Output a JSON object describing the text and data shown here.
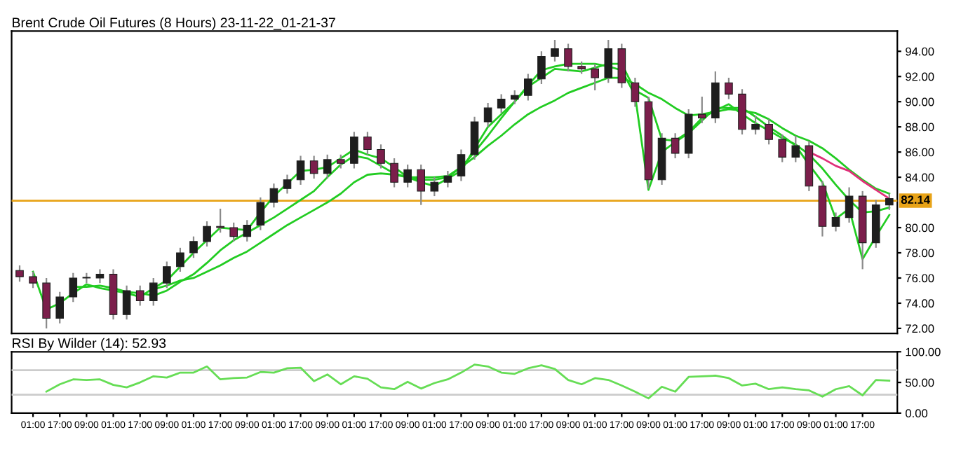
{
  "chart_data": [
    {
      "type": "candlestick",
      "title": "Brent Crude Oil Futures (8 Hours) 23-11-22_01-21-37",
      "categories": [
        null,
        null,
        null,
        null,
        null,
        null,
        null,
        null,
        null,
        null,
        null,
        null,
        null,
        null,
        null,
        null,
        null,
        null,
        null,
        null,
        null,
        null,
        null,
        null,
        null,
        null,
        null,
        null,
        null,
        null,
        null,
        null,
        null,
        null,
        null,
        null,
        null,
        null,
        null,
        null,
        null,
        null,
        null,
        null,
        null,
        null,
        null,
        null,
        null,
        null,
        null,
        null,
        null,
        null,
        null,
        null,
        null,
        null,
        null,
        null,
        null,
        null,
        null,
        null,
        null,
        null
      ],
      "ohlc": [
        [
          76.6,
          77.0,
          75.7,
          76.1
        ],
        [
          76.1,
          76.5,
          75.2,
          75.6
        ],
        [
          75.6,
          76.0,
          72.0,
          72.8
        ],
        [
          72.8,
          74.9,
          72.4,
          74.5
        ],
        [
          74.5,
          76.4,
          74.1,
          76.0
        ],
        [
          76.0,
          76.4,
          75.6,
          76.0
        ],
        [
          76.0,
          76.7,
          75.6,
          76.3
        ],
        [
          76.3,
          76.7,
          72.7,
          73.1
        ],
        [
          73.1,
          75.4,
          72.7,
          75.0
        ],
        [
          75.0,
          75.4,
          73.8,
          74.2
        ],
        [
          74.2,
          76.0,
          73.8,
          75.6
        ],
        [
          75.6,
          77.3,
          75.2,
          76.9
        ],
        [
          76.9,
          78.4,
          76.5,
          78.0
        ],
        [
          78.0,
          79.3,
          77.6,
          78.9
        ],
        [
          78.9,
          80.5,
          78.5,
          80.1
        ],
        [
          80.1,
          81.5,
          79.6,
          80.0
        ],
        [
          80.0,
          80.4,
          78.9,
          79.3
        ],
        [
          79.3,
          80.6,
          78.9,
          80.2
        ],
        [
          80.2,
          82.4,
          79.8,
          82.0
        ],
        [
          82.0,
          83.5,
          81.6,
          83.1
        ],
        [
          83.1,
          84.2,
          82.7,
          83.8
        ],
        [
          83.8,
          85.7,
          83.4,
          85.3
        ],
        [
          85.3,
          85.7,
          83.9,
          84.3
        ],
        [
          84.3,
          85.8,
          83.9,
          85.4
        ],
        [
          85.4,
          85.8,
          84.7,
          85.1
        ],
        [
          85.1,
          87.6,
          84.7,
          87.2
        ],
        [
          87.2,
          87.6,
          85.8,
          86.2
        ],
        [
          86.2,
          86.6,
          84.7,
          85.1
        ],
        [
          85.1,
          85.5,
          83.2,
          83.6
        ],
        [
          83.6,
          85.0,
          83.2,
          84.6
        ],
        [
          84.6,
          85.0,
          81.8,
          82.9
        ],
        [
          82.9,
          84.0,
          82.5,
          83.6
        ],
        [
          83.6,
          84.5,
          83.2,
          84.1
        ],
        [
          84.1,
          86.2,
          83.7,
          85.8
        ],
        [
          85.8,
          88.8,
          85.4,
          88.4
        ],
        [
          88.4,
          89.9,
          88.0,
          89.5
        ],
        [
          89.5,
          90.6,
          89.1,
          90.2
        ],
        [
          90.2,
          90.9,
          89.8,
          90.5
        ],
        [
          90.5,
          92.2,
          90.1,
          91.8
        ],
        [
          91.8,
          94.0,
          91.4,
          93.6
        ],
        [
          93.6,
          94.9,
          93.2,
          94.2
        ],
        [
          94.2,
          94.6,
          92.4,
          92.8
        ],
        [
          92.8,
          93.2,
          92.2,
          92.6
        ],
        [
          92.6,
          93.0,
          90.9,
          91.9
        ],
        [
          91.9,
          94.9,
          91.5,
          94.2
        ],
        [
          94.2,
          94.6,
          91.1,
          91.5
        ],
        [
          91.5,
          91.9,
          89.6,
          90.0
        ],
        [
          90.0,
          90.4,
          83.1,
          83.8
        ],
        [
          83.8,
          87.5,
          83.4,
          87.1
        ],
        [
          87.1,
          87.5,
          85.5,
          85.9
        ],
        [
          85.9,
          89.4,
          85.5,
          89.0
        ],
        [
          89.0,
          90.4,
          88.3,
          88.7
        ],
        [
          88.7,
          92.4,
          88.3,
          91.5
        ],
        [
          91.5,
          91.9,
          90.2,
          90.6
        ],
        [
          90.6,
          91.0,
          87.4,
          87.8
        ],
        [
          87.8,
          88.9,
          87.4,
          88.2
        ],
        [
          88.2,
          88.6,
          86.6,
          87.0
        ],
        [
          87.0,
          87.4,
          85.2,
          85.6
        ],
        [
          85.6,
          87.3,
          85.2,
          86.5
        ],
        [
          86.5,
          86.9,
          82.9,
          83.3
        ],
        [
          83.3,
          83.7,
          79.3,
          80.1
        ],
        [
          80.1,
          81.2,
          79.7,
          80.8
        ],
        [
          80.8,
          83.2,
          80.4,
          82.5
        ],
        [
          82.5,
          82.9,
          76.7,
          78.8
        ],
        [
          78.8,
          82.2,
          78.4,
          81.8
        ],
        [
          81.8,
          82.7,
          81.4,
          82.3
        ]
      ],
      "series": [
        {
          "type": "line",
          "color": "#22cc22",
          "values": [
            null,
            76.5,
            73.5,
            74.0,
            74.8,
            75.5,
            75.2,
            75.0,
            74.8,
            74.5,
            75.2,
            75.8,
            76.9,
            78.0,
            79.0,
            80.0,
            79.9,
            79.8,
            81.2,
            82.5,
            83.5,
            84.5,
            84.6,
            84.8,
            85.5,
            86.2,
            85.8,
            85.5,
            84.8,
            84.0,
            83.6,
            83.3,
            83.9,
            84.5,
            86.3,
            88.0,
            89.0,
            90.0,
            91.3,
            92.5,
            92.8,
            93.0,
            93.0,
            93.0,
            92.8,
            92.5,
            90.5,
            83.0,
            86.0,
            86.8,
            87.5,
            88.5,
            89.5,
            89.5,
            89.5,
            88.8,
            88.0,
            87.3,
            86.5,
            85.0,
            83.6,
            80.7,
            81.5,
            77.5,
            79.3,
            81.0
          ]
        },
        {
          "type": "line",
          "color": "#22cc22",
          "values": [
            null,
            null,
            null,
            null,
            75.3,
            75.3,
            75.4,
            75.2,
            74.9,
            74.8,
            74.6,
            75.0,
            75.7,
            76.3,
            77.2,
            78.2,
            79.0,
            79.6,
            80.2,
            80.8,
            81.5,
            82.2,
            82.9,
            84.0,
            85.0,
            85.7,
            85.5,
            84.9,
            84.3,
            84.0,
            83.8,
            83.8,
            84.0,
            84.8,
            86.0,
            87.3,
            88.7,
            90.0,
            91.2,
            91.9,
            92.6,
            92.5,
            92.4,
            92.7,
            93.0,
            93.0,
            90.9,
            90.3,
            87.0,
            86.9,
            87.6,
            88.7,
            89.3,
            89.8,
            89.0,
            88.3,
            87.7,
            87.1,
            86.6,
            85.8,
            84.7,
            83.4,
            82.2,
            81.2,
            81.3,
            81.6
          ]
        },
        {
          "type": "line",
          "color": "#22cc22",
          "values": [
            null,
            null,
            null,
            null,
            null,
            null,
            null,
            null,
            null,
            null,
            75.1,
            75.4,
            75.8,
            76.0,
            76.5,
            77.0,
            77.6,
            78.1,
            78.8,
            79.5,
            80.2,
            80.8,
            81.4,
            82.0,
            82.7,
            83.6,
            84.2,
            84.3,
            84.2,
            84.0,
            84.0,
            84.0,
            84.1,
            84.8,
            85.6,
            86.5,
            87.3,
            88.2,
            89.0,
            89.6,
            90.1,
            90.7,
            91.1,
            91.5,
            91.9,
            91.9,
            91.4,
            90.7,
            90.2,
            89.5,
            88.9,
            89.0,
            89.2,
            89.4,
            89.3,
            89.1,
            88.6,
            87.9,
            87.3,
            86.9,
            86.3,
            85.5,
            84.6,
            83.8,
            83.1,
            82.7
          ]
        },
        {
          "type": "line",
          "color": "#e0307a",
          "values": [
            null,
            null,
            null,
            null,
            null,
            null,
            null,
            null,
            null,
            null,
            null,
            null,
            null,
            null,
            null,
            null,
            null,
            null,
            null,
            null,
            null,
            null,
            null,
            null,
            null,
            null,
            null,
            null,
            null,
            null,
            null,
            null,
            null,
            null,
            null,
            null,
            null,
            null,
            null,
            null,
            null,
            null,
            null,
            null,
            null,
            null,
            null,
            null,
            null,
            null,
            null,
            null,
            null,
            null,
            null,
            null,
            null,
            null,
            null,
            86.0,
            85.5,
            84.9,
            84.5,
            83.7,
            83.0,
            82.3
          ]
        }
      ],
      "ylim": [
        71.6,
        95.6
      ],
      "yticks": [
        {
          "value": 72,
          "label": "72.00"
        },
        {
          "value": 74,
          "label": "74.00"
        },
        {
          "value": 76,
          "label": "76.00"
        },
        {
          "value": 78,
          "label": "78.00"
        },
        {
          "value": 80,
          "label": "80.00"
        },
        {
          "value": 84,
          "label": "84.00"
        },
        {
          "value": 86,
          "label": "86.00"
        },
        {
          "value": 88,
          "label": "88.00"
        },
        {
          "value": 90,
          "label": "90.00"
        },
        {
          "value": 92,
          "label": "92.00"
        },
        {
          "value": 94,
          "label": "94.00"
        }
      ],
      "ref_lines": [
        {
          "axis": "y",
          "value": 82.14,
          "label": "82.14",
          "color": "#e8a317"
        }
      ],
      "tick_labels": "y"
    },
    {
      "type": "line",
      "title": "RSI By Wilder (14): 52.93",
      "categories": [
        null,
        "01:00",
        null,
        "17:00",
        null,
        "09:00",
        null,
        "01:00",
        null,
        "17:00",
        null,
        "09:00",
        null,
        "01:00",
        null,
        "17:00",
        null,
        "09:00",
        null,
        "01:00",
        null,
        "17:00",
        null,
        "09:00",
        null,
        "01:00",
        null,
        "17:00",
        null,
        "09:00",
        null,
        "01:00",
        null,
        "17:00",
        null,
        "09:00",
        null,
        "01:00",
        null,
        "17:00",
        null,
        "09:00",
        null,
        "01:00",
        null,
        "17:00",
        null,
        "09:00",
        null,
        "01:00",
        null,
        "17:00",
        null,
        "09:00",
        null,
        "01:00",
        null,
        "17:00",
        null,
        "09:00",
        null,
        "01:00",
        null,
        "17:00",
        null,
        null
      ],
      "series": [
        {
          "color": "#66dd55",
          "values": [
            null,
            null,
            35,
            47,
            55,
            54,
            55,
            46,
            42,
            50,
            60,
            58,
            66,
            66,
            76,
            55,
            57,
            58,
            67,
            66,
            73,
            74,
            52,
            63,
            47,
            60,
            56,
            42,
            39,
            51,
            40,
            49,
            55,
            66,
            79,
            76,
            66,
            64,
            73,
            78,
            72,
            54,
            47,
            57,
            54,
            45,
            35,
            24,
            43,
            35,
            59,
            60,
            61,
            57,
            45,
            48,
            39,
            42,
            39,
            37,
            27,
            39,
            44,
            29,
            54,
            53
          ]
        }
      ],
      "ylim": [
        0,
        100
      ],
      "yticks": [
        {
          "value": 0,
          "label": "0.00"
        },
        {
          "value": 50,
          "label": "50.00"
        },
        {
          "value": 100,
          "label": "100.00"
        }
      ],
      "ref_lines": [
        {
          "axis": "y",
          "value": 30,
          "color": "#cccccc"
        },
        {
          "axis": "y",
          "value": 70,
          "color": "#cccccc"
        }
      ]
    }
  ]
}
